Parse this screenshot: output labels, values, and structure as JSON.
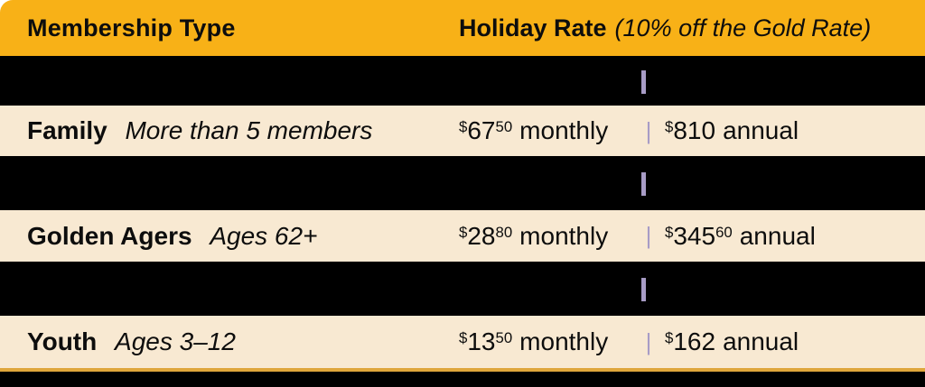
{
  "table": {
    "currency": "$",
    "divider": "|",
    "header": {
      "type_label": "Membership Type",
      "rate_label": "Holiday Rate",
      "rate_note": "(10% off the Gold Rate)"
    },
    "rows": [
      {
        "name": "Family",
        "detail": "More than 5 members",
        "monthly": {
          "dollars": "67",
          "cents": "50",
          "unit": "monthly"
        },
        "annual": {
          "dollars": "810",
          "cents": "",
          "unit": "annual"
        }
      },
      {
        "name": "Golden Agers",
        "detail": "Ages 62+",
        "monthly": {
          "dollars": "28",
          "cents": "80",
          "unit": "monthly"
        },
        "annual": {
          "dollars": "345",
          "cents": "60",
          "unit": "annual"
        }
      },
      {
        "name": "Youth",
        "detail": "Ages 3–12",
        "monthly": {
          "dollars": "13",
          "cents": "50",
          "unit": "monthly"
        },
        "annual": {
          "dollars": "162",
          "cents": "",
          "unit": "annual"
        }
      }
    ],
    "colors": {
      "gold": "#F8B117",
      "cream": "#F8E9D2",
      "black": "#000000",
      "lavender": "#A89CC6",
      "bottom_rule": "#DFA63C"
    }
  }
}
